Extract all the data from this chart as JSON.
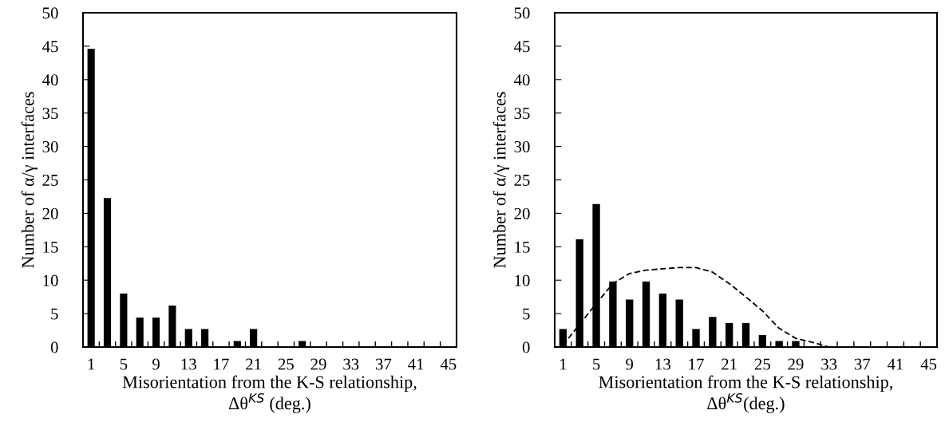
{
  "chart_data": [
    {
      "type": "bar",
      "categories": [
        "1",
        null,
        "5",
        null,
        "9",
        null,
        "13",
        null,
        "17",
        null,
        "21",
        null,
        "25",
        null,
        "29",
        null,
        "33",
        null,
        "37",
        null,
        "41",
        null,
        "45"
      ],
      "values": [
        44.6,
        22.3,
        8.0,
        4.4,
        4.4,
        6.2,
        2.7,
        2.7,
        0,
        0.9,
        2.7,
        0,
        0,
        0.9,
        0,
        0,
        0,
        0,
        0,
        0,
        0,
        0,
        0
      ],
      "color": "#000000",
      "ylim": [
        0,
        50
      ],
      "yticks": [
        0,
        5,
        10,
        15,
        20,
        25,
        30,
        35,
        40,
        45,
        50
      ],
      "ylabel": "Number of α/γ interfaces",
      "xlabel": "Misorientation from the K-S relationship,\nΔθ$^{KS}$ (deg.)"
    },
    {
      "type": "bar",
      "categories": [
        "1",
        null,
        "5",
        null,
        "9",
        null,
        "13",
        null,
        "17",
        null,
        "21",
        null,
        "25",
        null,
        "29",
        null,
        "33",
        null,
        "37",
        null,
        "41",
        null,
        "45"
      ],
      "series": [
        {
          "type": "bar",
          "color": "#000000",
          "values": [
            2.7,
            16.1,
            21.4,
            9.8,
            7.1,
            9.8,
            8.0,
            7.1,
            2.7,
            4.5,
            3.6,
            3.6,
            1.8,
            0.9,
            0.9,
            0,
            0,
            0,
            0,
            0,
            0,
            0,
            0
          ]
        },
        {
          "type": "line",
          "color": "#000000",
          "line_style": "dashed",
          "values": [
            0.3,
            3.4,
            6.5,
            9.5,
            11.0,
            11.5,
            11.7,
            11.9,
            11.9,
            11.2,
            9.5,
            7.5,
            5.4,
            2.8,
            1.3,
            0.7,
            0.0,
            null,
            null,
            null,
            null,
            null,
            null
          ]
        }
      ],
      "ylim": [
        0,
        50
      ],
      "yticks": [
        0,
        5,
        10,
        15,
        20,
        25,
        30,
        35,
        40,
        45,
        50
      ],
      "ylabel": "Number of α/γ interfaces",
      "xlabel": "Misorientation from the K-S relationship,\nΔθ$^{KS}$(deg.)"
    }
  ]
}
